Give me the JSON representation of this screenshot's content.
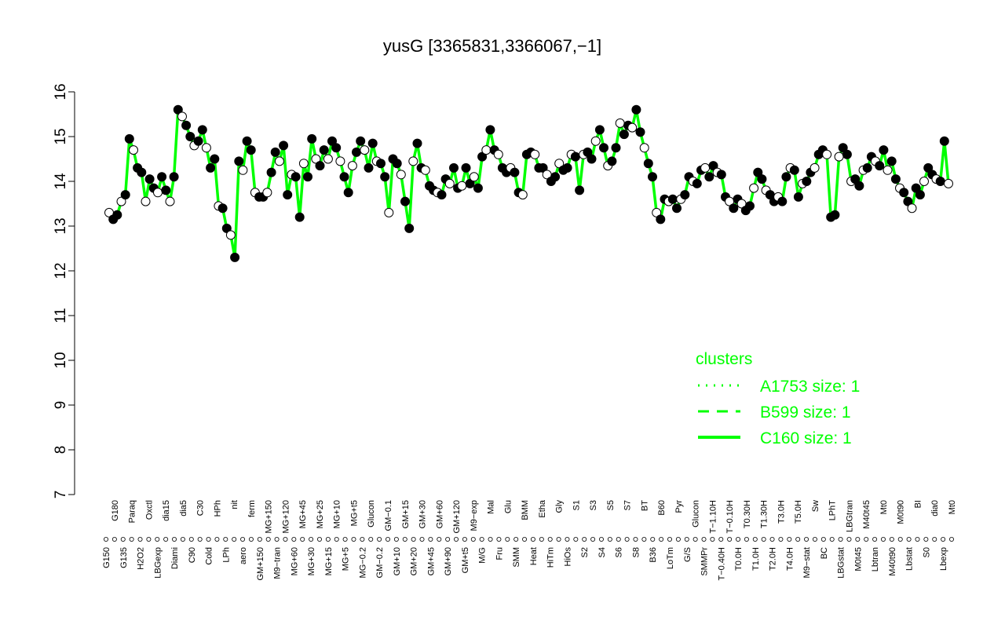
{
  "chart_data": {
    "type": "line",
    "title": "yusG [3365831,3366067,−1]",
    "xlabel": "",
    "ylabel": "",
    "ylim": [
      7,
      16
    ],
    "yticks": [
      7,
      8,
      9,
      10,
      11,
      12,
      13,
      14,
      15,
      16
    ],
    "line_color": "#00ff00",
    "x_tick_labels": [
      "G150",
      "G180",
      "G135",
      "Paraq",
      "H2O2",
      "Oxctl",
      "LBGexp",
      "dia15",
      "Diami",
      "dia5",
      "C90",
      "C30",
      "Cold",
      "HPh",
      "LPh",
      "nit",
      "aero",
      "ferm",
      "GM+150",
      "MG+150",
      "M9−tran",
      "MG+120",
      "MG+60",
      "MG+45",
      "MG+30",
      "MG+25",
      "MG+15",
      "MG+10",
      "MG+5",
      "MG+t5",
      "MG−0.2",
      "Glucon",
      "GM−0.2",
      "GM−0.1",
      "GM+10",
      "GM+15",
      "GM+20",
      "GM+30",
      "GM+45",
      "GM+60",
      "GM+90",
      "GM+120",
      "GM+t5",
      "M9−exp",
      "M/G",
      "Mal",
      "Fru",
      "Glu",
      "SMM",
      "BMM",
      "Heat",
      "Etha",
      "HiTm",
      "Gly",
      "HiOs",
      "S1",
      "S2",
      "S3",
      "S4",
      "S5",
      "S6",
      "S7",
      "S8",
      "BT",
      "B36",
      "B60",
      "LoTm",
      "Pyr",
      "G/S",
      "Glucon",
      "SMMPr",
      "T−1.10H",
      "T−0.40H",
      "T−0.10H",
      "T0.0H",
      "T0.30H",
      "T1.0H",
      "T1.30H",
      "T2.0H",
      "T3.0H",
      "T4.0H",
      "T5.0H",
      "M9−stat",
      "Sw",
      "BC",
      "LPhT",
      "LBGstat",
      "LBGtran",
      "M0t45",
      "M40t45",
      "Lbtran",
      "Mt0",
      "M40t90",
      "M0t90",
      "Lbstat",
      "BI",
      "S0",
      "dia0",
      "Lbexp",
      "Mt0"
    ],
    "series": [
      {
        "name": "C160",
        "values": [
          13.3,
          13.15,
          13.25,
          13.55,
          13.7,
          14.95,
          14.7,
          14.3,
          14.2,
          13.55,
          14.05,
          13.85,
          13.75,
          14.1,
          13.8,
          13.55,
          14.1,
          15.6,
          15.45,
          15.25,
          15.0,
          14.8,
          14.9,
          15.15,
          14.75,
          14.3,
          14.5,
          13.45,
          13.4,
          12.95,
          12.8,
          12.3,
          14.45,
          14.25,
          14.9,
          14.7,
          13.75,
          13.65,
          13.65,
          13.75,
          14.2,
          14.65,
          14.45,
          14.8,
          13.7,
          14.15,
          14.1,
          13.2,
          14.4,
          14.1,
          14.95,
          14.5,
          14.35,
          14.7,
          14.5,
          14.9,
          14.75,
          14.45,
          14.1,
          13.75,
          14.35,
          14.65,
          14.9,
          14.7,
          14.3,
          14.85,
          14.45,
          14.4,
          14.1,
          13.3,
          14.5,
          14.4,
          14.15,
          13.55,
          12.95,
          14.45,
          14.85,
          14.3,
          14.25,
          13.9,
          13.8,
          13.75,
          13.7,
          14.05,
          13.95,
          14.3,
          13.85,
          13.9,
          14.3,
          13.95,
          14.1,
          13.85,
          14.55,
          14.7,
          15.15,
          14.7,
          14.6,
          14.3,
          14.2,
          14.3,
          14.2,
          13.75,
          13.7,
          14.6,
          14.65,
          14.6,
          14.3,
          14.3,
          14.15,
          14.0,
          14.1,
          14.4,
          14.25,
          14.3,
          14.6,
          14.55,
          13.8,
          14.6,
          14.65,
          14.5,
          14.9,
          15.15,
          14.75,
          14.35,
          14.45,
          14.75,
          15.3,
          15.05,
          15.25,
          15.2,
          15.6,
          15.1,
          14.75,
          14.4,
          14.1,
          13.3,
          13.15,
          13.6,
          13.55,
          13.6,
          13.4,
          13.6,
          13.7,
          14.1,
          14.0,
          13.95,
          14.25,
          14.3,
          14.1,
          14.35,
          14.2,
          14.15,
          13.65,
          13.55,
          13.4,
          13.6,
          13.5,
          13.35,
          13.45,
          13.85,
          14.2,
          14.05,
          13.8,
          13.7,
          13.55,
          13.65,
          13.55,
          14.1,
          14.3,
          14.25,
          13.65,
          13.95,
          14.0,
          14.2,
          14.3,
          14.6,
          14.7,
          14.6,
          13.2,
          13.25,
          14.55,
          14.75,
          14.6,
          14.0,
          14.05,
          13.9,
          14.25,
          14.3,
          14.55,
          14.45,
          14.35,
          14.7,
          14.25,
          14.45,
          14.05,
          13.85,
          13.75,
          13.55,
          13.4,
          13.85,
          13.7,
          14.0,
          14.3,
          14.15,
          14.05,
          14.0,
          14.9,
          13.95
        ]
      }
    ],
    "legend": {
      "title": "clusters",
      "position": "right",
      "entries": [
        {
          "label": "A1753 size: 1",
          "style": "dotted"
        },
        {
          "label": "B599 size: 1",
          "style": "dashed"
        },
        {
          "label": "C160 size: 1",
          "style": "solid"
        }
      ]
    }
  }
}
